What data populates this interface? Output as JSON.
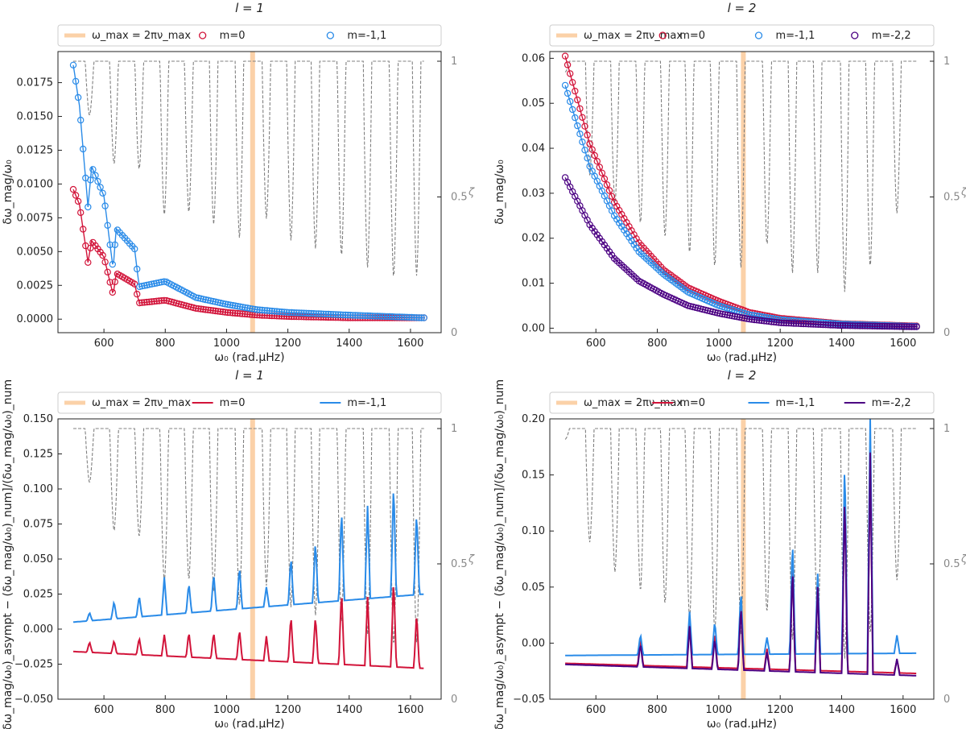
{
  "figure": {
    "xlabel": "ω₀ (rad.μHz)",
    "zeta_label": "ζ"
  },
  "colors": {
    "m0": "#d2143a",
    "m1": "#2a8be8",
    "m2": "#4b0082",
    "omax": "#fbd1a8",
    "zeta": "#808080"
  },
  "chart_data": [
    {
      "type": "scatter",
      "title": "l = 1",
      "ylabel": "δω_mag/ω₀",
      "xlim": [
        450,
        1700
      ],
      "ylim": [
        -0.001,
        0.0198
      ],
      "xticks": [
        "600",
        "800",
        "1000",
        "1200",
        "1400",
        "1600"
      ],
      "yticks": [
        "0.0000",
        "0.0025",
        "0.0050",
        "0.0075",
        "0.0100",
        "0.0125",
        "0.0150",
        "0.0175"
      ],
      "legend": [
        "ω_max = 2πν_max",
        "m=0",
        "m=-1,1"
      ],
      "omega_max": 1085,
      "series": [
        {
          "name": "m=0",
          "color_key": "m0",
          "style": "markers",
          "sparse": [
            [
              500,
              0.0096
            ],
            [
              520,
              0.0085
            ],
            [
              548,
              0.0042
            ],
            [
              560,
              0.0058
            ],
            [
              600,
              0.0046
            ],
            [
              630,
              0.0018
            ],
            [
              640,
              0.0034
            ],
            [
              700,
              0.0026
            ],
            [
              715,
              0.0012
            ],
            [
              800,
              0.0014
            ],
            [
              900,
              0.0008
            ],
            [
              1000,
              0.0005
            ],
            [
              1100,
              0.0003
            ],
            [
              1200,
              0.0002
            ],
            [
              1400,
              0.0001
            ],
            [
              1640,
              0.0001
            ]
          ]
        },
        {
          "name": "m=-1,1",
          "color_key": "m1",
          "style": "markers",
          "sparse": [
            [
              500,
              0.0188
            ],
            [
              520,
              0.0158
            ],
            [
              548,
              0.0083
            ],
            [
              560,
              0.0113
            ],
            [
              600,
              0.0091
            ],
            [
              630,
              0.0037
            ],
            [
              640,
              0.0067
            ],
            [
              700,
              0.0052
            ],
            [
              715,
              0.0024
            ],
            [
              800,
              0.0028
            ],
            [
              900,
              0.0016
            ],
            [
              1000,
              0.0011
            ],
            [
              1100,
              0.0007
            ],
            [
              1200,
              0.0005
            ],
            [
              1400,
              0.0003
            ],
            [
              1640,
              0.0001
            ]
          ]
        }
      ],
      "zeta_curve": "l1"
    },
    {
      "type": "scatter",
      "title": "l = 2",
      "ylabel": "δω_mag/ω₀",
      "xlim": [
        450,
        1700
      ],
      "ylim": [
        -0.001,
        0.0615
      ],
      "xticks": [
        "600",
        "800",
        "1000",
        "1200",
        "1400",
        "1600"
      ],
      "yticks": [
        "0.00",
        "0.01",
        "0.02",
        "0.03",
        "0.04",
        "0.05",
        "0.06"
      ],
      "legend": [
        "ω_max = 2πν_max",
        "m=0",
        "m=-1,1",
        "m=-2,2"
      ],
      "omega_max": 1080,
      "series": [
        {
          "name": "m=0",
          "color_key": "m0",
          "style": "markers",
          "sparse": [
            [
              500,
              0.0605
            ],
            [
              580,
              0.041
            ],
            [
              660,
              0.028
            ],
            [
              740,
              0.019
            ],
            [
              820,
              0.013
            ],
            [
              900,
              0.009
            ],
            [
              1000,
              0.006
            ],
            [
              1100,
              0.0035
            ],
            [
              1200,
              0.0022
            ],
            [
              1400,
              0.001
            ],
            [
              1640,
              0.0005
            ]
          ]
        },
        {
          "name": "m=-1,1",
          "color_key": "m1",
          "style": "markers",
          "sparse": [
            [
              500,
              0.054
            ],
            [
              580,
              0.036
            ],
            [
              660,
              0.025
            ],
            [
              740,
              0.017
            ],
            [
              820,
              0.012
            ],
            [
              900,
              0.008
            ],
            [
              1000,
              0.005
            ],
            [
              1100,
              0.003
            ],
            [
              1200,
              0.0019
            ],
            [
              1400,
              0.0009
            ],
            [
              1640,
              0.0004
            ]
          ]
        },
        {
          "name": "m=-2,2",
          "color_key": "m2",
          "style": "markers",
          "sparse": [
            [
              500,
              0.0335
            ],
            [
              580,
              0.023
            ],
            [
              660,
              0.0155
            ],
            [
              740,
              0.0105
            ],
            [
              820,
              0.0075
            ],
            [
              900,
              0.005
            ],
            [
              1000,
              0.0033
            ],
            [
              1100,
              0.002
            ],
            [
              1200,
              0.0012
            ],
            [
              1400,
              0.0006
            ],
            [
              1640,
              0.0003
            ]
          ]
        }
      ],
      "zeta_curve": "l2"
    },
    {
      "type": "line",
      "title": "l = 1",
      "ylabel": "[(δω_mag/ω₀)_asympt − (δω_mag/ω₀)_num]/(δω_mag/ω₀)_num",
      "xlim": [
        450,
        1700
      ],
      "ylim": [
        -0.05,
        0.15
      ],
      "xticks": [
        "600",
        "800",
        "1000",
        "1200",
        "1400",
        "1600"
      ],
      "yticks": [
        "−0.050",
        "−0.025",
        "0.000",
        "0.025",
        "0.050",
        "0.075",
        "0.100",
        "0.125",
        "0.150"
      ],
      "legend": [
        "ω_max = 2πν_max",
        "m=0",
        "m=-1,1"
      ],
      "omega_max": 1085,
      "series": [
        {
          "name": "m=0",
          "color_key": "m0",
          "style": "line",
          "base": -0.016,
          "base_end": -0.028,
          "peaks": [
            [
              553,
              -0.009
            ],
            [
              633,
              -0.008
            ],
            [
              715,
              -0.006
            ],
            [
              797,
              -0.004
            ],
            [
              877,
              -0.002
            ],
            [
              958,
              -0.002
            ],
            [
              1042,
              0.0
            ],
            [
              1130,
              -0.005
            ],
            [
              1210,
              0.01
            ],
            [
              1290,
              0.01
            ],
            [
              1375,
              0.028
            ],
            [
              1460,
              0.023
            ],
            [
              1545,
              0.037
            ],
            [
              1620,
              0.012
            ]
          ],
          "end": [
            1645,
            -0.021
          ]
        },
        {
          "name": "m=-1,1",
          "color_key": "m1",
          "style": "line",
          "base": 0.005,
          "base_end": 0.025,
          "peaks": [
            [
              553,
              0.012
            ],
            [
              633,
              0.02
            ],
            [
              715,
              0.024
            ],
            [
              797,
              0.037
            ],
            [
              877,
              0.033
            ],
            [
              958,
              0.04
            ],
            [
              1042,
              0.045
            ],
            [
              1130,
              0.03
            ],
            [
              1210,
              0.052
            ],
            [
              1290,
              0.064
            ],
            [
              1375,
              0.087
            ],
            [
              1460,
              0.088
            ],
            [
              1545,
              0.106
            ],
            [
              1620,
              0.085
            ]
          ],
          "end": [
            1645,
            0.05
          ]
        }
      ],
      "zeta_curve": "l1"
    },
    {
      "type": "line",
      "title": "l = 2",
      "ylabel": "[(δω_mag/ω₀)_asympt − (δω_mag/ω₀)_num]/(δω_mag/ω₀)_num",
      "xlim": [
        450,
        1700
      ],
      "ylim": [
        -0.05,
        0.2
      ],
      "xticks": [
        "600",
        "800",
        "1000",
        "1200",
        "1400",
        "1600"
      ],
      "yticks": [
        "−0.05",
        "0.00",
        "0.05",
        "0.10",
        "0.15",
        "0.20"
      ],
      "legend": [
        "ω_max = 2πν_max",
        "m=0",
        "m=-1,1",
        "m=-2,2"
      ],
      "omega_max": 1080,
      "series": [
        {
          "name": "m=0",
          "color_key": "m0",
          "style": "line",
          "base": -0.018,
          "base_end": -0.027,
          "peaks": [
            [
              745,
              0.005
            ],
            [
              905,
              0.02
            ],
            [
              987,
              0.01
            ],
            [
              1072,
              0.04
            ],
            [
              1157,
              -0.005
            ],
            [
              1240,
              0.075
            ],
            [
              1322,
              0.055
            ],
            [
              1410,
              0.145
            ],
            [
              1493,
              0.175
            ],
            [
              1580,
              -0.015
            ]
          ],
          "end": [
            1640,
            -0.028
          ]
        },
        {
          "name": "m=-1,1",
          "color_key": "m1",
          "style": "line",
          "base": -0.011,
          "base_end": -0.009,
          "peaks": [
            [
              745,
              0.008
            ],
            [
              905,
              0.028
            ],
            [
              987,
              0.02
            ],
            [
              1072,
              0.048
            ],
            [
              1157,
              0.005
            ],
            [
              1240,
              0.095
            ],
            [
              1322,
              0.062
            ],
            [
              1410,
              0.17
            ],
            [
              1493,
              0.2
            ],
            [
              1580,
              0.007
            ]
          ],
          "end": [
            1640,
            -0.009
          ]
        },
        {
          "name": "m=-2,2",
          "color_key": "m2",
          "style": "line",
          "base": -0.019,
          "base_end": -0.029,
          "peaks": [
            [
              745,
              0.0
            ],
            [
              905,
              0.015
            ],
            [
              987,
              0.005
            ],
            [
              1072,
              0.035
            ],
            [
              1157,
              -0.008
            ],
            [
              1240,
              0.07
            ],
            [
              1322,
              0.05
            ],
            [
              1410,
              0.14
            ],
            [
              1493,
              0.17
            ],
            [
              1580,
              -0.014
            ]
          ],
          "end": [
            1640,
            -0.03
          ]
        }
      ],
      "zeta_curve": "l2"
    }
  ],
  "zeta": {
    "ticks": [
      "0",
      "0.5",
      "1"
    ],
    "l1_dips": [
      [
        553,
        0.8
      ],
      [
        633,
        0.62
      ],
      [
        715,
        0.6
      ],
      [
        797,
        0.43
      ],
      [
        877,
        0.44
      ],
      [
        958,
        0.4
      ],
      [
        1042,
        0.35
      ],
      [
        1130,
        0.42
      ],
      [
        1210,
        0.34
      ],
      [
        1290,
        0.31
      ],
      [
        1375,
        0.28
      ],
      [
        1460,
        0.24
      ],
      [
        1545,
        0.2
      ],
      [
        1620,
        0.21
      ]
    ],
    "l2_dips": [
      [
        500,
        0.96
      ],
      [
        580,
        0.58
      ],
      [
        662,
        0.47
      ],
      [
        745,
        0.4
      ],
      [
        825,
        0.35
      ],
      [
        905,
        0.29
      ],
      [
        987,
        0.24
      ],
      [
        1072,
        0.24
      ],
      [
        1157,
        0.32
      ],
      [
        1240,
        0.22
      ],
      [
        1322,
        0.22
      ],
      [
        1410,
        0.15
      ],
      [
        1493,
        0.24
      ],
      [
        1580,
        0.44
      ]
    ]
  }
}
